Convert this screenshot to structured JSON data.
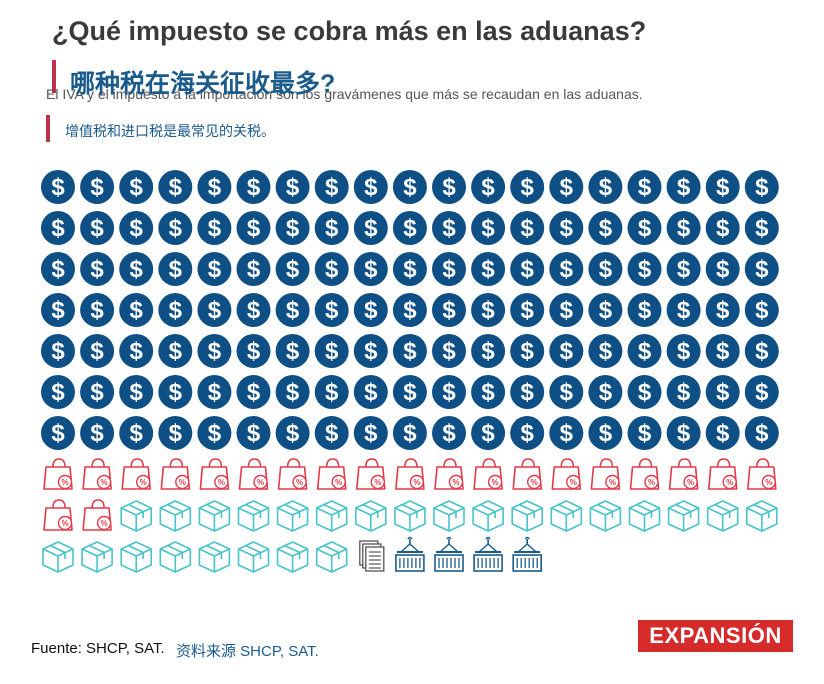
{
  "header": {
    "title": "¿Qué impuesto se cobra más en las aduanas?",
    "title_zh": "哪种税在海关征收最多?",
    "subtitle": "El IVA y el impuesto a la importación son los gravámenes que más se recaudan en las aduanas.",
    "subtitle_zh": "增值税和进口税是最常见的关税。"
  },
  "chart_data": {
    "type": "pictogram",
    "series": [
      {
        "icon": "dollar-coin-icon",
        "count": 133
      },
      {
        "icon": "shopping-bag-percent-icon",
        "count": 21
      },
      {
        "icon": "package-box-icon",
        "count": 25
      },
      {
        "icon": "document-stack-icon",
        "count": 1
      },
      {
        "icon": "shipping-container-icon",
        "count": 4
      }
    ],
    "icons_per_row": 19,
    "colors": {
      "dollar-coin-icon": "#0e4f86",
      "shopping-bag-percent-icon": "#e23b4a",
      "package-box-icon": "#48c4c9",
      "document-stack-icon": "#555555",
      "shipping-container-icon": "#1b5b8c"
    }
  },
  "footer": {
    "source": "Fuente: SHCP, SAT.",
    "source_zh": "资料来源 SHCP, SAT.",
    "logo": "EXPANSIÓN",
    "logo_color": "#d62b2b"
  }
}
